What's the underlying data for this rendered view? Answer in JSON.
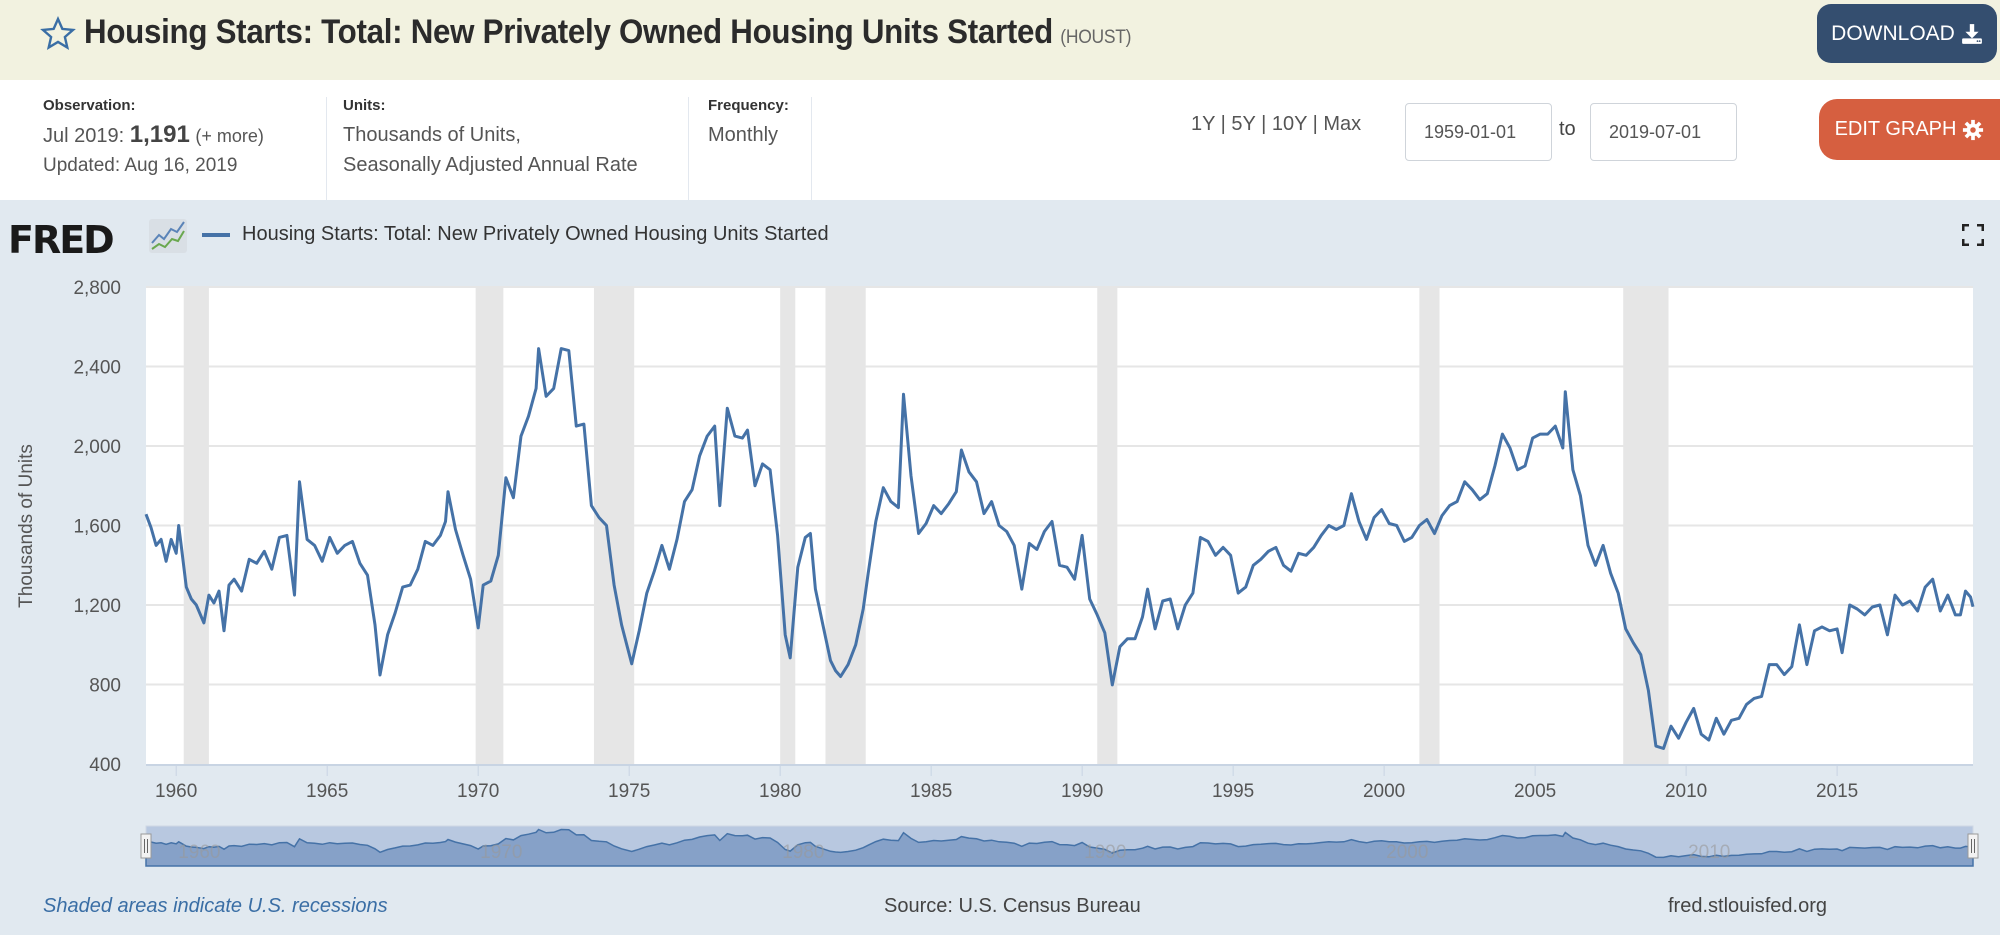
{
  "header": {
    "title": "Housing Starts: Total: New Privately Owned Housing Units Started",
    "series_id": "(HOUST)",
    "download_label": "DOWNLOAD",
    "star_icon": "star-outline-icon",
    "download_icon": "download-icon"
  },
  "info": {
    "observation_label": "Observation:",
    "observation_date": "Jul 2019:",
    "observation_value": "1,191",
    "observation_more": "(+ more)",
    "updated": "Updated: Aug 16, 2019",
    "units_label": "Units:",
    "units_line1": "Thousands of Units,",
    "units_line2": "Seasonally Adjusted Annual Rate",
    "frequency_label": "Frequency:",
    "frequency_value": "Monthly"
  },
  "controls": {
    "range_1y": "1Y",
    "range_5y": "5Y",
    "range_10y": "10Y",
    "range_max": "Max",
    "separator": " | ",
    "start_date": "1959-01-01",
    "to_label": "to",
    "end_date": "2019-07-01",
    "edit_graph_label": "EDIT GRAPH",
    "edit_icon": "gear-icon"
  },
  "chart_header": {
    "logo": "FRED",
    "legend_label": "Housing Starts: Total: New Privately Owned Housing Units Started",
    "fullscreen_icon": "fullscreen-icon"
  },
  "footer": {
    "recession_note": "Shaded areas indicate U.S. recessions",
    "source": "Source: U.S. Census Bureau",
    "site": "fred.stlouisfed.org"
  },
  "chart_data": {
    "type": "line",
    "title": "Housing Starts: Total: New Privately Owned Housing Units Started",
    "xlabel": "",
    "ylabel": "Thousands of Units",
    "xlim": [
      "1959-01",
      "2019-07"
    ],
    "ylim": [
      400,
      2800
    ],
    "y_ticks": [
      400,
      800,
      1200,
      1600,
      2000,
      2400,
      2800
    ],
    "y_tick_labels": [
      "400",
      "800",
      "1,200",
      "1,600",
      "2,000",
      "2,400",
      "2,800"
    ],
    "x_ticks": [
      1960,
      1965,
      1970,
      1975,
      1980,
      1985,
      1990,
      1995,
      2000,
      2005,
      2010,
      2015
    ],
    "x_tick_labels": [
      "1960",
      "1965",
      "1970",
      "1975",
      "1980",
      "1985",
      "1990",
      "1995",
      "2000",
      "2005",
      "2010",
      "2015"
    ],
    "navigator_labels": [
      "1960",
      "1970",
      "1980",
      "1990",
      "2000",
      "2010"
    ],
    "grid": true,
    "legend": "top-left",
    "line_color": "#4572a7",
    "recessions": [
      [
        "1960-04",
        "1961-02"
      ],
      [
        "1969-12",
        "1970-11"
      ],
      [
        "1973-11",
        "1975-03"
      ],
      [
        "1980-01",
        "1980-07"
      ],
      [
        "1981-07",
        "1982-11"
      ],
      [
        "1990-07",
        "1991-03"
      ],
      [
        "2001-03",
        "2001-11"
      ],
      [
        "2007-12",
        "2009-06"
      ]
    ],
    "series": [
      {
        "name": "HOUST",
        "unit": "Thousands of Units, SAAR",
        "points": [
          [
            "1959-01",
            1657
          ],
          [
            "1959-03",
            1590
          ],
          [
            "1959-05",
            1500
          ],
          [
            "1959-07",
            1530
          ],
          [
            "1959-09",
            1420
          ],
          [
            "1959-11",
            1530
          ],
          [
            "1960-01",
            1460
          ],
          [
            "1960-02",
            1600
          ],
          [
            "1960-03",
            1500
          ],
          [
            "1960-05",
            1290
          ],
          [
            "1960-07",
            1230
          ],
          [
            "1960-09",
            1200
          ],
          [
            "1960-12",
            1110
          ],
          [
            "1961-02",
            1250
          ],
          [
            "1961-04",
            1210
          ],
          [
            "1961-06",
            1270
          ],
          [
            "1961-08",
            1070
          ],
          [
            "1961-10",
            1300
          ],
          [
            "1961-12",
            1330
          ],
          [
            "1962-03",
            1270
          ],
          [
            "1962-06",
            1430
          ],
          [
            "1962-09",
            1410
          ],
          [
            "1962-12",
            1470
          ],
          [
            "1963-03",
            1380
          ],
          [
            "1963-06",
            1540
          ],
          [
            "1963-09",
            1550
          ],
          [
            "1963-12",
            1250
          ],
          [
            "1964-02",
            1820
          ],
          [
            "1964-05",
            1530
          ],
          [
            "1964-08",
            1500
          ],
          [
            "1964-11",
            1420
          ],
          [
            "1965-02",
            1540
          ],
          [
            "1965-05",
            1460
          ],
          [
            "1965-08",
            1500
          ],
          [
            "1965-11",
            1520
          ],
          [
            "1966-02",
            1410
          ],
          [
            "1966-05",
            1350
          ],
          [
            "1966-08",
            1100
          ],
          [
            "1966-10",
            848
          ],
          [
            "1967-01",
            1050
          ],
          [
            "1967-04",
            1160
          ],
          [
            "1967-07",
            1290
          ],
          [
            "1967-10",
            1300
          ],
          [
            "1968-01",
            1380
          ],
          [
            "1968-04",
            1520
          ],
          [
            "1968-07",
            1500
          ],
          [
            "1968-10",
            1550
          ],
          [
            "1968-12",
            1620
          ],
          [
            "1969-01",
            1770
          ],
          [
            "1969-04",
            1580
          ],
          [
            "1969-07",
            1450
          ],
          [
            "1969-10",
            1330
          ],
          [
            "1970-01",
            1085
          ],
          [
            "1970-03",
            1300
          ],
          [
            "1970-06",
            1320
          ],
          [
            "1970-09",
            1450
          ],
          [
            "1970-12",
            1840
          ],
          [
            "1971-03",
            1740
          ],
          [
            "1971-06",
            2050
          ],
          [
            "1971-09",
            2150
          ],
          [
            "1971-12",
            2290
          ],
          [
            "1972-01",
            2490
          ],
          [
            "1972-04",
            2250
          ],
          [
            "1972-07",
            2290
          ],
          [
            "1972-10",
            2490
          ],
          [
            "1973-01",
            2480
          ],
          [
            "1973-04",
            2100
          ],
          [
            "1973-07",
            2110
          ],
          [
            "1973-10",
            1700
          ],
          [
            "1974-01",
            1640
          ],
          [
            "1974-04",
            1600
          ],
          [
            "1974-07",
            1300
          ],
          [
            "1974-10",
            1100
          ],
          [
            "1975-02",
            904
          ],
          [
            "1975-05",
            1070
          ],
          [
            "1975-08",
            1260
          ],
          [
            "1975-11",
            1370
          ],
          [
            "1976-02",
            1500
          ],
          [
            "1976-05",
            1380
          ],
          [
            "1976-08",
            1530
          ],
          [
            "1976-11",
            1720
          ],
          [
            "1977-02",
            1780
          ],
          [
            "1977-05",
            1950
          ],
          [
            "1977-08",
            2050
          ],
          [
            "1977-11",
            2100
          ],
          [
            "1978-01",
            1700
          ],
          [
            "1978-04",
            2190
          ],
          [
            "1978-07",
            2050
          ],
          [
            "1978-10",
            2040
          ],
          [
            "1978-12",
            2080
          ],
          [
            "1979-03",
            1800
          ],
          [
            "1979-06",
            1910
          ],
          [
            "1979-09",
            1880
          ],
          [
            "1979-12",
            1550
          ],
          [
            "1980-03",
            1050
          ],
          [
            "1980-05",
            934
          ],
          [
            "1980-08",
            1390
          ],
          [
            "1980-11",
            1540
          ],
          [
            "1981-01",
            1560
          ],
          [
            "1981-03",
            1280
          ],
          [
            "1981-06",
            1100
          ],
          [
            "1981-09",
            920
          ],
          [
            "1981-11",
            870
          ],
          [
            "1982-01",
            840
          ],
          [
            "1982-04",
            900
          ],
          [
            "1982-07",
            1000
          ],
          [
            "1982-10",
            1180
          ],
          [
            "1982-12",
            1360
          ],
          [
            "1983-03",
            1620
          ],
          [
            "1983-06",
            1790
          ],
          [
            "1983-09",
            1720
          ],
          [
            "1983-12",
            1690
          ],
          [
            "1984-02",
            2260
          ],
          [
            "1984-05",
            1850
          ],
          [
            "1984-08",
            1560
          ],
          [
            "1984-11",
            1610
          ],
          [
            "1985-02",
            1700
          ],
          [
            "1985-05",
            1660
          ],
          [
            "1985-08",
            1710
          ],
          [
            "1985-11",
            1770
          ],
          [
            "1986-01",
            1980
          ],
          [
            "1986-04",
            1870
          ],
          [
            "1986-07",
            1820
          ],
          [
            "1986-10",
            1660
          ],
          [
            "1987-01",
            1720
          ],
          [
            "1987-04",
            1600
          ],
          [
            "1987-07",
            1570
          ],
          [
            "1987-10",
            1500
          ],
          [
            "1988-01",
            1280
          ],
          [
            "1988-04",
            1510
          ],
          [
            "1988-07",
            1480
          ],
          [
            "1988-10",
            1570
          ],
          [
            "1989-01",
            1620
          ],
          [
            "1989-04",
            1400
          ],
          [
            "1989-07",
            1390
          ],
          [
            "1989-10",
            1330
          ],
          [
            "1990-01",
            1550
          ],
          [
            "1990-04",
            1230
          ],
          [
            "1990-07",
            1150
          ],
          [
            "1990-10",
            1060
          ],
          [
            "1991-01",
            798
          ],
          [
            "1991-04",
            990
          ],
          [
            "1991-07",
            1030
          ],
          [
            "1991-10",
            1030
          ],
          [
            "1992-01",
            1140
          ],
          [
            "1992-03",
            1280
          ],
          [
            "1992-06",
            1080
          ],
          [
            "1992-09",
            1220
          ],
          [
            "1992-12",
            1230
          ],
          [
            "1993-03",
            1080
          ],
          [
            "1993-06",
            1200
          ],
          [
            "1993-09",
            1260
          ],
          [
            "1993-12",
            1540
          ],
          [
            "1994-03",
            1520
          ],
          [
            "1994-06",
            1450
          ],
          [
            "1994-09",
            1490
          ],
          [
            "1994-12",
            1450
          ],
          [
            "1995-03",
            1260
          ],
          [
            "1995-06",
            1290
          ],
          [
            "1995-09",
            1400
          ],
          [
            "1995-12",
            1430
          ],
          [
            "1996-03",
            1470
          ],
          [
            "1996-06",
            1490
          ],
          [
            "1996-09",
            1400
          ],
          [
            "1996-12",
            1370
          ],
          [
            "1997-03",
            1460
          ],
          [
            "1997-06",
            1450
          ],
          [
            "1997-09",
            1490
          ],
          [
            "1997-12",
            1550
          ],
          [
            "1998-03",
            1600
          ],
          [
            "1998-06",
            1580
          ],
          [
            "1998-09",
            1600
          ],
          [
            "1998-12",
            1760
          ],
          [
            "1999-03",
            1620
          ],
          [
            "1999-06",
            1530
          ],
          [
            "1999-09",
            1640
          ],
          [
            "1999-12",
            1680
          ],
          [
            "2000-03",
            1610
          ],
          [
            "2000-06",
            1600
          ],
          [
            "2000-09",
            1520
          ],
          [
            "2000-12",
            1540
          ],
          [
            "2001-03",
            1600
          ],
          [
            "2001-06",
            1630
          ],
          [
            "2001-09",
            1560
          ],
          [
            "2001-12",
            1650
          ],
          [
            "2002-03",
            1700
          ],
          [
            "2002-06",
            1720
          ],
          [
            "2002-09",
            1820
          ],
          [
            "2002-12",
            1780
          ],
          [
            "2003-03",
            1730
          ],
          [
            "2003-06",
            1760
          ],
          [
            "2003-09",
            1900
          ],
          [
            "2003-12",
            2060
          ],
          [
            "2004-03",
            1990
          ],
          [
            "2004-06",
            1880
          ],
          [
            "2004-09",
            1900
          ],
          [
            "2004-12",
            2040
          ],
          [
            "2005-03",
            2060
          ],
          [
            "2005-06",
            2060
          ],
          [
            "2005-09",
            2100
          ],
          [
            "2005-12",
            1990
          ],
          [
            "2006-01",
            2273
          ],
          [
            "2006-04",
            1880
          ],
          [
            "2006-07",
            1750
          ],
          [
            "2006-10",
            1500
          ],
          [
            "2007-01",
            1400
          ],
          [
            "2007-04",
            1500
          ],
          [
            "2007-07",
            1360
          ],
          [
            "2007-10",
            1260
          ],
          [
            "2008-01",
            1080
          ],
          [
            "2008-04",
            1010
          ],
          [
            "2008-07",
            950
          ],
          [
            "2008-10",
            770
          ],
          [
            "2009-01",
            490
          ],
          [
            "2009-04",
            478
          ],
          [
            "2009-07",
            590
          ],
          [
            "2009-10",
            530
          ],
          [
            "2010-01",
            610
          ],
          [
            "2010-04",
            680
          ],
          [
            "2010-07",
            550
          ],
          [
            "2010-10",
            520
          ],
          [
            "2011-01",
            630
          ],
          [
            "2011-04",
            550
          ],
          [
            "2011-07",
            620
          ],
          [
            "2011-10",
            630
          ],
          [
            "2012-01",
            700
          ],
          [
            "2012-04",
            730
          ],
          [
            "2012-07",
            740
          ],
          [
            "2012-10",
            900
          ],
          [
            "2013-01",
            900
          ],
          [
            "2013-04",
            850
          ],
          [
            "2013-07",
            890
          ],
          [
            "2013-10",
            1100
          ],
          [
            "2014-01",
            900
          ],
          [
            "2014-04",
            1070
          ],
          [
            "2014-07",
            1090
          ],
          [
            "2014-10",
            1070
          ],
          [
            "2015-01",
            1080
          ],
          [
            "2015-03",
            960
          ],
          [
            "2015-06",
            1200
          ],
          [
            "2015-09",
            1180
          ],
          [
            "2015-12",
            1150
          ],
          [
            "2016-03",
            1190
          ],
          [
            "2016-06",
            1200
          ],
          [
            "2016-09",
            1050
          ],
          [
            "2016-12",
            1250
          ],
          [
            "2017-03",
            1200
          ],
          [
            "2017-06",
            1220
          ],
          [
            "2017-09",
            1170
          ],
          [
            "2017-12",
            1290
          ],
          [
            "2018-03",
            1330
          ],
          [
            "2018-06",
            1170
          ],
          [
            "2018-09",
            1250
          ],
          [
            "2018-12",
            1150
          ],
          [
            "2019-02",
            1150
          ],
          [
            "2019-04",
            1270
          ],
          [
            "2019-06",
            1240
          ],
          [
            "2019-07",
            1191
          ]
        ]
      }
    ]
  }
}
